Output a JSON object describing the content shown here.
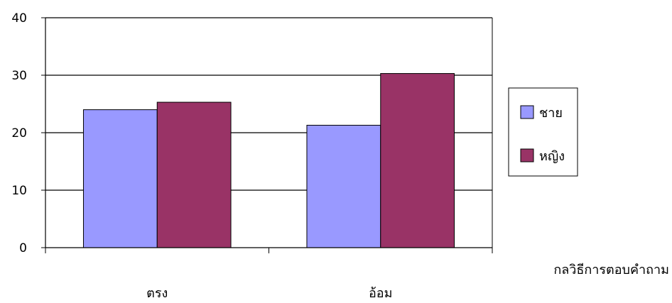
{
  "chart_data": {
    "type": "bar",
    "categories": [
      "ตรง",
      "อ้อม"
    ],
    "series": [
      {
        "name": "ชาย",
        "values": [
          24,
          21.3
        ],
        "color": "#9999ff"
      },
      {
        "name": "หญิง",
        "values": [
          25.3,
          30.3
        ],
        "color": "#993366"
      }
    ],
    "xlabel": "กลวิธีการตอบคำถาม",
    "ylabel": "",
    "ylim": [
      0,
      40
    ],
    "yticks": [
      0,
      10,
      20,
      30,
      40
    ],
    "grid": true,
    "legend_position": "right"
  }
}
